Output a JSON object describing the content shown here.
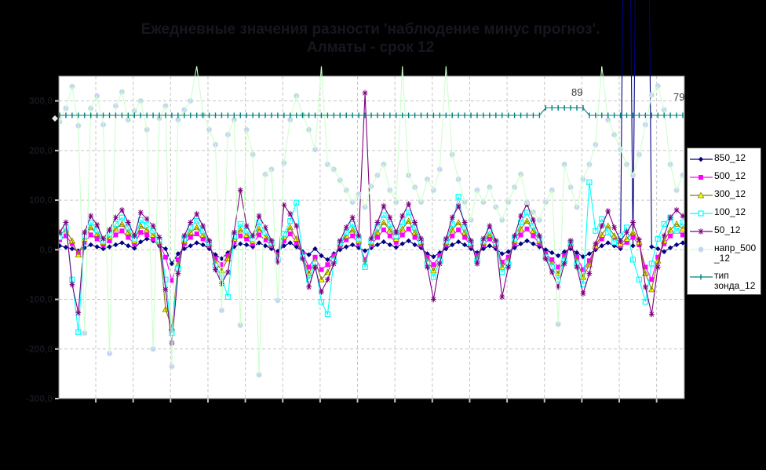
{
  "title": {
    "line1": "Ежедневные значения разности 'наблюдение минус прогноз'.",
    "line2": "Алматы - срок 12"
  },
  "colors": {
    "page_bg": "#000000",
    "plot_bg": "#ffffff",
    "grid": "#c6c6c6",
    "plot_border": "#888888",
    "axis_text": "#16161f",
    "annotation_text": "#3a3a3a",
    "navy": "#000080",
    "magenta": "#ff00ff",
    "olive": "#808000",
    "yellow": "#ffff00",
    "cyan": "#00ffff",
    "purple": "#800080",
    "pale_green": "#ccffcc",
    "pale_lavender": "#ccccff",
    "teal": "#008080"
  },
  "chart_data": {
    "type": "line",
    "title": "Ежедневные значения разности 'наблюдение минус прогноз'. Алматы - срок 12",
    "xlabel": "",
    "ylabel": "",
    "x_count": 101,
    "ylim": [
      -300,
      350
    ],
    "secondary_ylim": [
      -300,
      131.5
    ],
    "grid": "dashed",
    "x_grid_step": 6,
    "legend_position": "right",
    "yticks": [
      {
        "v": 300,
        "label": "300,0"
      },
      {
        "v": 200,
        "label": "200,0"
      },
      {
        "v": 100,
        "label": "100,0"
      },
      {
        "v": 0,
        "label": "0,0"
      },
      {
        "v": -100,
        "label": "-100,0"
      },
      {
        "v": -200,
        "label": "-200,0"
      },
      {
        "v": -300,
        "label": "-300,0"
      }
    ],
    "xticklabels": [],
    "annotations": [
      {
        "text": "89",
        "x": 736,
        "y": 118
      },
      {
        "text": "79",
        "x": 866,
        "y": 124
      }
    ],
    "series": [
      {
        "name": "850_12",
        "color": "#000080",
        "marker": "diamond",
        "marker_fill": "#000080",
        "values": [
          8,
          5,
          2,
          -2,
          4,
          10,
          6,
          2,
          6,
          10,
          14,
          8,
          3,
          16,
          22,
          18,
          8,
          2,
          -28,
          -8,
          2,
          8,
          14,
          10,
          2,
          -10,
          -18,
          -6,
          6,
          12,
          10,
          6,
          14,
          8,
          2,
          -3,
          8,
          14,
          6,
          -4,
          -10,
          2,
          -12,
          -20,
          -8,
          0,
          6,
          10,
          4,
          -2,
          4,
          10,
          16,
          10,
          5,
          12,
          18,
          10,
          4,
          -8,
          -14,
          -6,
          2,
          10,
          16,
          10,
          2,
          -6,
          2,
          8,
          2,
          -8,
          -4,
          4,
          12,
          18,
          12,
          6,
          0,
          -6,
          -12,
          -4,
          2,
          -6,
          -14,
          -8,
          0,
          8,
          14,
          8,
          2,
          1400,
          8,
          1400,
          1400,
          6,
          2,
          -4,
          4,
          10,
          14,
          8
        ]
      },
      {
        "name": "500_12",
        "color": "#ff00ff",
        "marker": "square",
        "marker_fill": "#ff00ff",
        "values": [
          20,
          28,
          12,
          -6,
          15,
          30,
          22,
          10,
          18,
          30,
          38,
          25,
          12,
          35,
          30,
          22,
          12,
          -15,
          -62,
          -20,
          12,
          25,
          32,
          22,
          8,
          -18,
          -30,
          -12,
          15,
          28,
          22,
          12,
          30,
          20,
          8,
          -10,
          18,
          32,
          15,
          -8,
          -35,
          -15,
          -40,
          -30,
          -12,
          8,
          20,
          28,
          12,
          -20,
          10,
          25,
          40,
          28,
          15,
          30,
          42,
          25,
          10,
          -15,
          -30,
          -12,
          10,
          28,
          40,
          25,
          8,
          -12,
          10,
          22,
          8,
          -25,
          -15,
          12,
          30,
          42,
          28,
          12,
          -8,
          -20,
          -35,
          -12,
          8,
          -15,
          -40,
          -22,
          5,
          22,
          35,
          20,
          8,
          15,
          25,
          10,
          -35,
          -60,
          -15,
          12,
          28,
          38,
          30
        ]
      },
      {
        "name": "300_12",
        "color": "#808000",
        "marker": "triangle",
        "marker_fill": "#ffff00",
        "values": [
          30,
          40,
          18,
          -10,
          22,
          45,
          32,
          15,
          26,
          42,
          52,
          35,
          18,
          48,
          40,
          30,
          16,
          -120,
          -157,
          -30,
          18,
          35,
          45,
          30,
          12,
          -25,
          -42,
          -18,
          22,
          40,
          30,
          18,
          42,
          28,
          12,
          -15,
          26,
          45,
          22,
          -12,
          -48,
          -22,
          -60,
          -45,
          -18,
          12,
          28,
          40,
          18,
          -28,
          15,
          35,
          55,
          40,
          22,
          42,
          58,
          35,
          15,
          -22,
          -42,
          -18,
          15,
          40,
          55,
          35,
          12,
          -18,
          15,
          30,
          12,
          -35,
          -22,
          18,
          42,
          58,
          38,
          18,
          -12,
          -28,
          -48,
          -18,
          12,
          -22,
          -55,
          -30,
          8,
          30,
          48,
          28,
          12,
          22,
          35,
          15,
          -48,
          -80,
          -22,
          18,
          40,
          52,
          42
        ]
      },
      {
        "name": "100_12",
        "color": "#00ffff",
        "marker": "open-square",
        "marker_fill": "#ffffff",
        "values": [
          25,
          45,
          -60,
          -166,
          28,
          55,
          40,
          18,
          32,
          52,
          65,
          45,
          22,
          60,
          50,
          38,
          20,
          -60,
          -168,
          -38,
          22,
          45,
          58,
          38,
          15,
          -32,
          -55,
          -95,
          28,
          52,
          38,
          22,
          55,
          35,
          15,
          -20,
          32,
          58,
          95,
          -15,
          -60,
          -28,
          -105,
          -130,
          -22,
          15,
          35,
          52,
          22,
          -35,
          18,
          45,
          70,
          52,
          28,
          55,
          75,
          45,
          18,
          -28,
          -55,
          -22,
          18,
          52,
          107,
          45,
          15,
          -22,
          18,
          38,
          15,
          -45,
          -28,
          22,
          55,
          75,
          48,
          22,
          -15,
          -35,
          -60,
          -22,
          15,
          -28,
          -70,
          136,
          38,
          62,
          35,
          15,
          28,
          45,
          -20,
          -60,
          -105,
          -28,
          22,
          52,
          65,
          38,
          55
        ]
      },
      {
        "name": "50_12",
        "color": "#800080",
        "marker": "asterisk",
        "marker_fill": "#800080",
        "values": [
          35,
          55,
          -70,
          -127,
          35,
          68,
          50,
          22,
          40,
          65,
          80,
          55,
          28,
          75,
          62,
          48,
          25,
          -80,
          -188,
          -48,
          28,
          55,
          72,
          48,
          18,
          -40,
          -68,
          -45,
          35,
          120,
          48,
          28,
          68,
          45,
          18,
          -25,
          90,
          72,
          48,
          -18,
          -75,
          -35,
          -85,
          -60,
          -28,
          18,
          45,
          65,
          28,
          316,
          22,
          55,
          88,
          65,
          35,
          68,
          92,
          55,
          22,
          -35,
          -100,
          -28,
          22,
          65,
          88,
          55,
          18,
          -28,
          22,
          48,
          18,
          -95,
          -35,
          28,
          68,
          92,
          60,
          28,
          -18,
          -45,
          -75,
          -28,
          18,
          -35,
          -88,
          -48,
          12,
          48,
          78,
          45,
          18,
          35,
          55,
          20,
          -75,
          -130,
          -35,
          28,
          65,
          80,
          68
        ]
      },
      {
        "name": "напр_500\n_12",
        "color": "#ccffcc",
        "marker": "circle",
        "marker_fill": "#ccccff",
        "values": [
          258,
          285,
          329,
          250,
          -168,
          285,
          310,
          252,
          -209,
          290,
          318,
          262,
          280,
          300,
          242,
          -200,
          265,
          290,
          -235,
          262,
          282,
          300,
          370,
          272,
          242,
          212,
          -122,
          232,
          262,
          -152,
          242,
          192,
          -252,
          152,
          162,
          -102,
          175,
          262,
          310,
          272,
          242,
          202,
          370,
          172,
          162,
          140,
          120,
          96,
          112,
          86,
          128,
          150,
          172,
          120,
          96,
          370,
          150,
          126,
          96,
          142,
          120,
          162,
          370,
          192,
          142,
          96,
          60,
          120,
          96,
          126,
          86,
          60,
          96,
          126,
          152,
          96,
          76,
          60,
          96,
          120,
          -150,
          172,
          126,
          86,
          142,
          172,
          212,
          370,
          262,
          232,
          202,
          172,
          150,
          192,
          252,
          312,
          330,
          282,
          172,
          120,
          150
        ]
      },
      {
        "name": "тип\nзонда_12",
        "color": "#008080",
        "marker": "plus",
        "marker_fill": "#008080",
        "secondary": true,
        "values": [
          79,
          79,
          79,
          79,
          79,
          79,
          79,
          79,
          79,
          79,
          79,
          79,
          79,
          79,
          79,
          79,
          79,
          79,
          79,
          79,
          79,
          79,
          79,
          79,
          79,
          79,
          79,
          79,
          79,
          79,
          79,
          79,
          79,
          79,
          79,
          79,
          79,
          79,
          79,
          79,
          79,
          79,
          79,
          79,
          79,
          79,
          79,
          79,
          79,
          79,
          79,
          79,
          79,
          79,
          79,
          79,
          79,
          79,
          79,
          79,
          79,
          79,
          79,
          79,
          79,
          79,
          79,
          79,
          79,
          79,
          79,
          79,
          79,
          79,
          79,
          79,
          79,
          79,
          89,
          89,
          89,
          89,
          89,
          89,
          89,
          79,
          79,
          79,
          79,
          79,
          79,
          79,
          79,
          79,
          79,
          79,
          79,
          79,
          79,
          79,
          79
        ]
      }
    ]
  }
}
